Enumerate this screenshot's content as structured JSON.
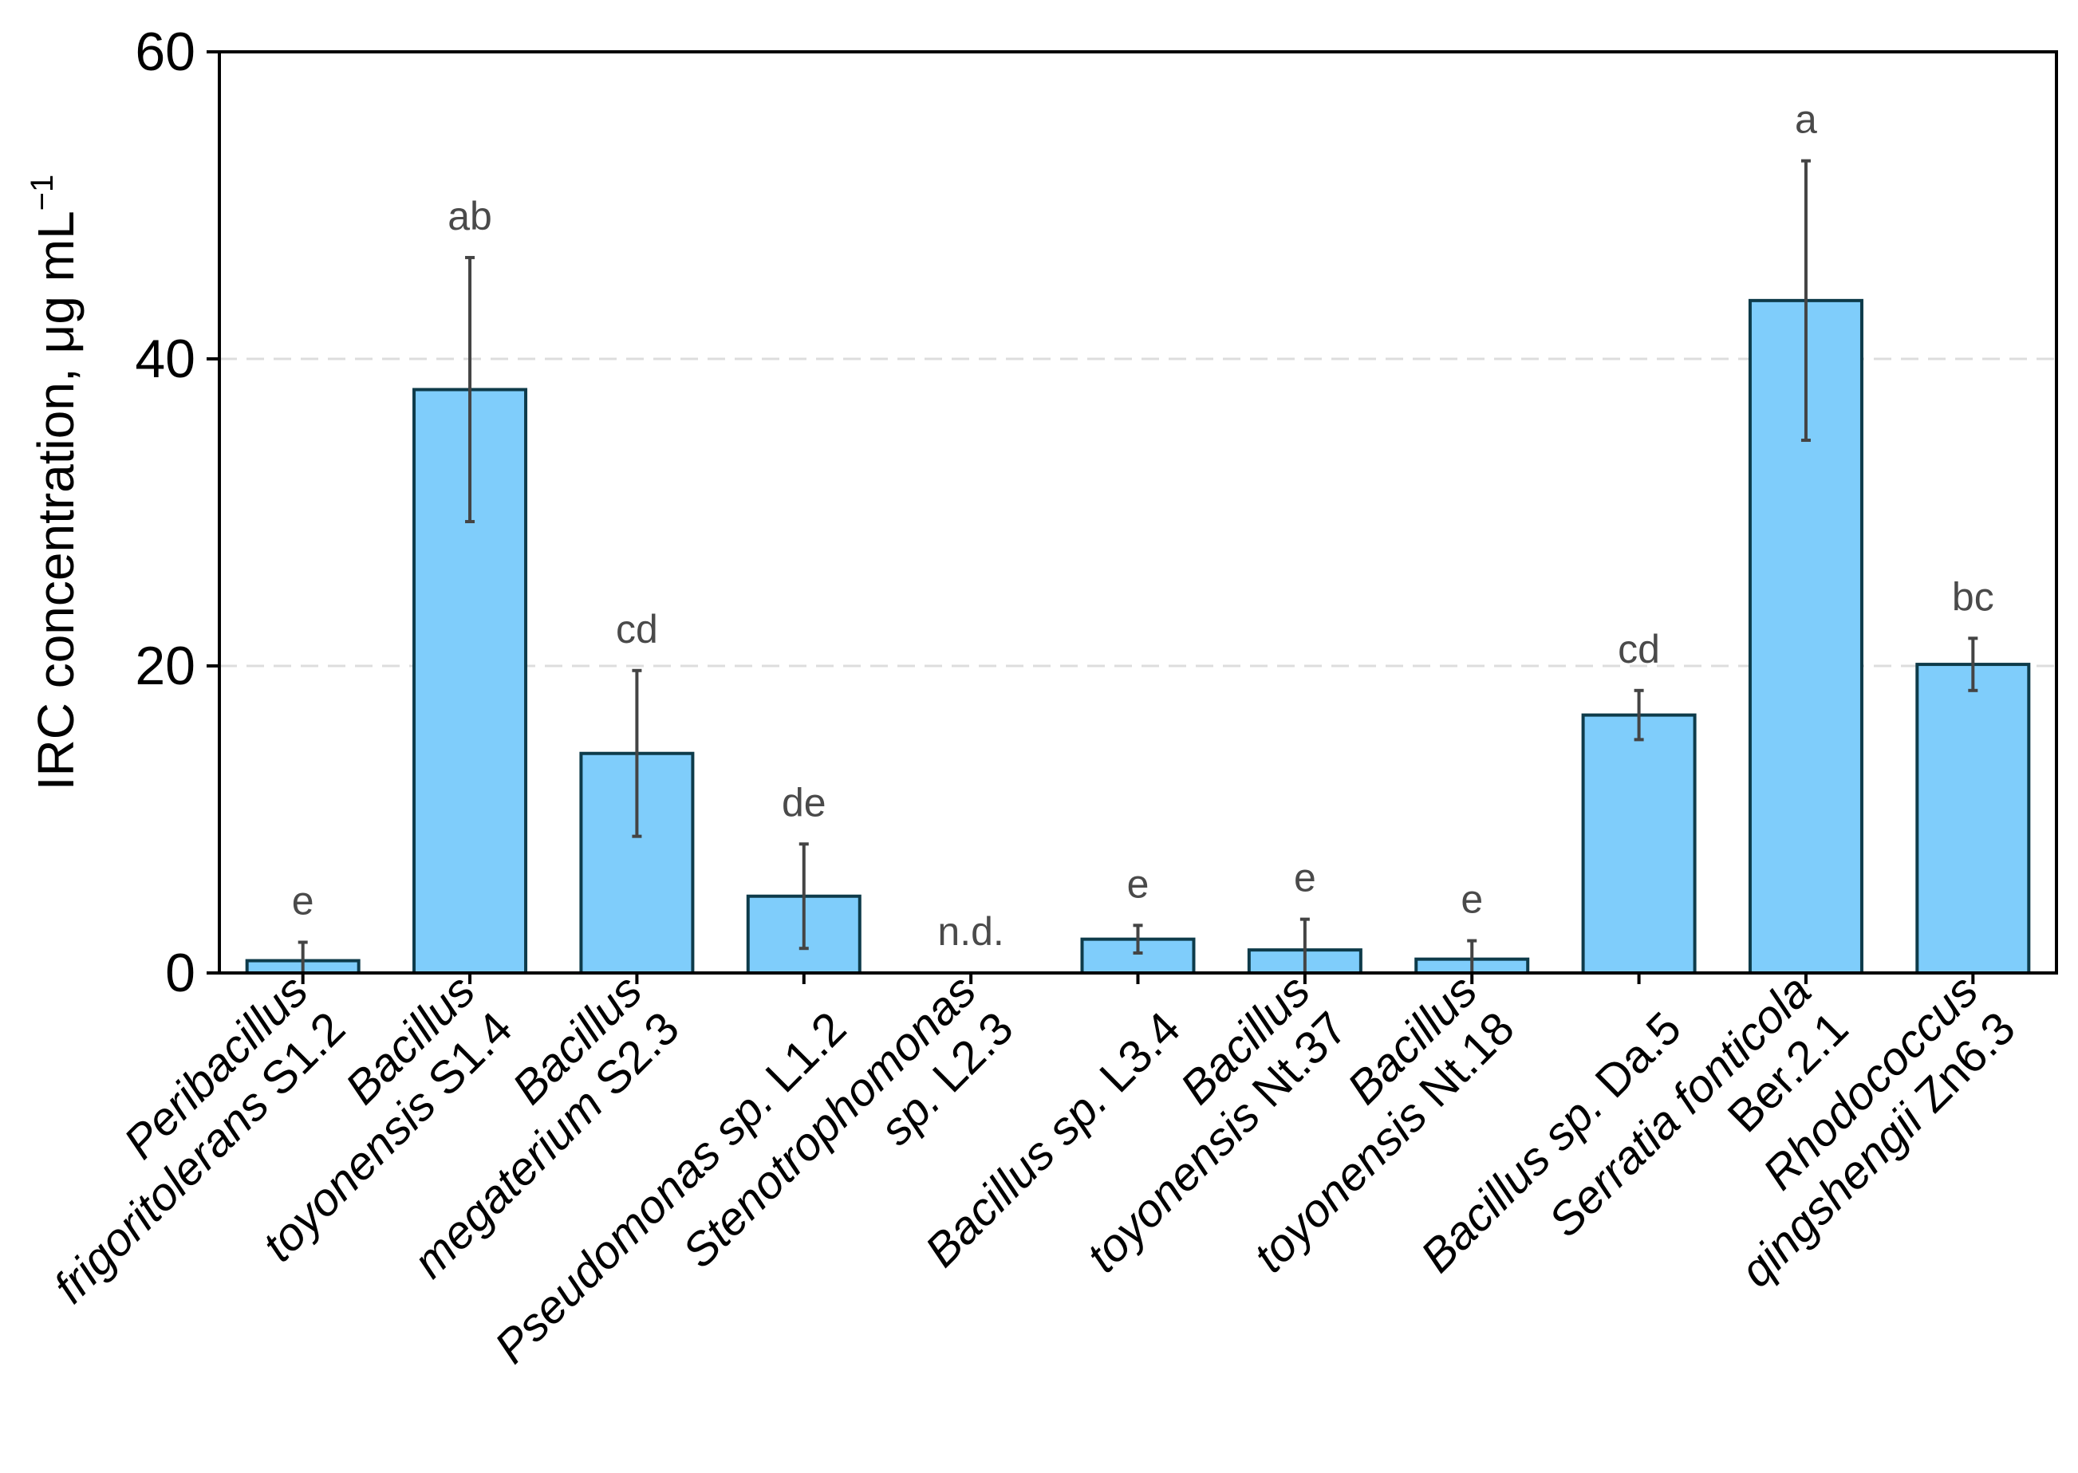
{
  "chart_data": {
    "type": "bar",
    "title": "",
    "ylabel": "IRC concentration, μg mL",
    "ylabel_sup": "−1",
    "xlabel": "",
    "ylim": [
      0,
      60
    ],
    "yticks": [
      {
        "value": 0,
        "label": "0"
      },
      {
        "value": 20,
        "label": "20"
      },
      {
        "value": 40,
        "label": "40"
      },
      {
        "value": 60,
        "label": "60"
      }
    ],
    "gridlines": [
      20,
      40
    ],
    "colors": {
      "bar_fill": "#7FCDFB",
      "bar_stroke": "#0E3B4A",
      "error_bar": "#444444",
      "grid": "#dddddd",
      "axis": "#000000"
    },
    "categories": [
      {
        "lines": [
          [
            {
              "t": "Peribacillus",
              "i": true
            }
          ],
          [
            {
              "t": "frigoritolerans",
              "i": true
            },
            {
              "t": " S1.2",
              "i": false
            }
          ]
        ]
      },
      {
        "lines": [
          [
            {
              "t": "Bacillus",
              "i": true
            }
          ],
          [
            {
              "t": "toyonensis",
              "i": true
            },
            {
              "t": " S1.4",
              "i": false
            }
          ]
        ]
      },
      {
        "lines": [
          [
            {
              "t": "Bacillus",
              "i": true
            }
          ],
          [
            {
              "t": "megaterium",
              "i": true
            },
            {
              "t": " S2.3",
              "i": false
            }
          ]
        ]
      },
      {
        "lines": [
          [
            {
              "t": "Pseudomonas sp.",
              "i": true
            },
            {
              "t": "  L1.2",
              "i": false
            }
          ]
        ]
      },
      {
        "lines": [
          [
            {
              "t": "Stenotrophomonas",
              "i": true
            }
          ],
          [
            {
              "t": "sp.",
              "i": true
            },
            {
              "t": "  L2.3",
              "i": false
            }
          ]
        ]
      },
      {
        "lines": [
          [
            {
              "t": "Bacillus sp.",
              "i": true
            },
            {
              "t": " L3.4",
              "i": false
            }
          ]
        ]
      },
      {
        "lines": [
          [
            {
              "t": "Bacillus",
              "i": true
            }
          ],
          [
            {
              "t": "toyonensis",
              "i": true
            },
            {
              "t": " Nt.37",
              "i": false
            }
          ]
        ]
      },
      {
        "lines": [
          [
            {
              "t": "Bacillus",
              "i": true
            }
          ],
          [
            {
              "t": "toyonensis",
              "i": true
            },
            {
              "t": " Nt.18",
              "i": false
            }
          ]
        ]
      },
      {
        "lines": [
          [
            {
              "t": "Bacillus sp.",
              "i": true
            },
            {
              "t": " Da.5",
              "i": false
            }
          ]
        ]
      },
      {
        "lines": [
          [
            {
              "t": "Serratia fonticola",
              "i": true
            }
          ],
          [
            {
              "t": "Ber.2.1",
              "i": false
            }
          ]
        ]
      },
      {
        "lines": [
          [
            {
              "t": "Rhodococcus",
              "i": true
            }
          ],
          [
            {
              "t": "qingshengii",
              "i": true
            },
            {
              "t": " Zn6.3",
              "i": false
            }
          ]
        ]
      }
    ],
    "values": [
      0.8,
      38.0,
      14.3,
      5.0,
      0,
      2.2,
      1.5,
      0.9,
      16.8,
      43.8,
      20.1
    ],
    "errors": [
      1.2,
      8.6,
      5.4,
      3.4,
      null,
      0.9,
      2.0,
      1.2,
      1.6,
      9.1,
      1.7
    ],
    "significance": [
      "e",
      "ab",
      "cd",
      "de",
      "n.d.",
      "e",
      "e",
      "e",
      "cd",
      "a",
      "bc"
    ]
  }
}
